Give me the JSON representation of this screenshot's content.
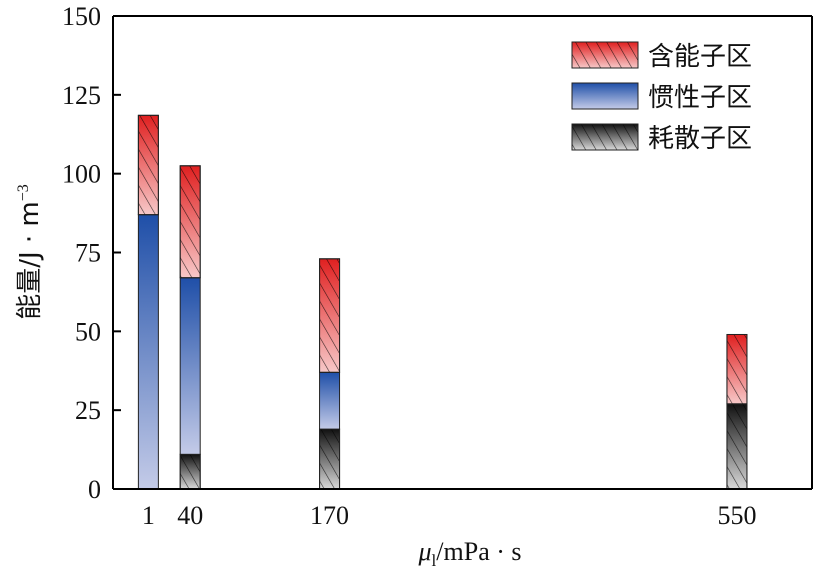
{
  "chart_data": {
    "type": "bar",
    "stacked": true,
    "x_numeric_categorical": true,
    "categories": [
      "1",
      "40",
      "170",
      "550"
    ],
    "xlabel": {
      "symbol": "μ",
      "subscript": "l",
      "rest": "/mPa · s"
    },
    "ylabel": {
      "main": "能量/J · m",
      "superscript": "−3"
    },
    "ylim": [
      0,
      150
    ],
    "yticks": [
      0,
      25,
      50,
      75,
      100,
      125,
      150
    ],
    "grid": false,
    "legend_position": "top-right",
    "series": [
      {
        "name": "耗散子区",
        "color_top": "#111111",
        "color_bottom": "#d9d9d9",
        "hatch": true,
        "values": [
          0,
          11,
          19,
          27
        ]
      },
      {
        "name": "惯性子区",
        "color_top": "#1f4fa8",
        "color_bottom": "#c4cbe8",
        "hatch": false,
        "values": [
          87,
          56,
          18,
          0
        ]
      },
      {
        "name": "含能子区",
        "color_top": "#e02020",
        "color_bottom": "#f7c8c8",
        "hatch": true,
        "values": [
          31.5,
          35.5,
          36,
          22
        ]
      }
    ],
    "legend_order": [
      "含能子区",
      "惯性子区",
      "耗散子区"
    ]
  }
}
